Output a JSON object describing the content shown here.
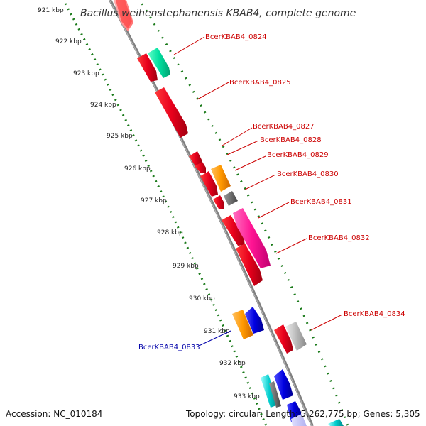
{
  "title": "Bacillus weihenstephanensis KBAB4, complete genome",
  "footer": {
    "accession": "Accession: NC_010184",
    "summary": "Topology: circular; Length: 5,262,775 bp; Genes: 5,305"
  },
  "ticks": [
    "921 kbp",
    "922 kbp",
    "923 kbp",
    "924 kbp",
    "925 kbp",
    "926 kbp",
    "927 kbp",
    "928 kbp",
    "929 kbp",
    "930 kbp",
    "931 kbp",
    "932 kbp",
    "933 kbp"
  ],
  "gene_labels": {
    "g0824": "BcerKBAB4_0824",
    "g0825": "BcerKBAB4_0825",
    "g0827": "BcerKBAB4_0827",
    "g0828": "BcerKBAB4_0828",
    "g0829": "BcerKBAB4_0829",
    "g0830": "BcerKBAB4_0830",
    "g0831": "BcerKBAB4_0831",
    "g0832": "BcerKBAB4_0832",
    "g0833": "BcerKBAB4_0833",
    "g0834": "BcerKBAB4_0834"
  },
  "colors": {
    "label_red": "#cc0000",
    "label_blue": "#0000aa",
    "backbone": "#808080",
    "tick_green": "#1a7a1a",
    "gene_red": "#e8001c",
    "gene_green": "#00e0a0",
    "gene_orange": "#ff9900",
    "gene_gray": "#707070",
    "gene_magenta": "#ff1493",
    "gene_blue": "#0000e0",
    "gene_cyan": "#00cccc",
    "gene_lightgray": "#bbbbbb"
  }
}
